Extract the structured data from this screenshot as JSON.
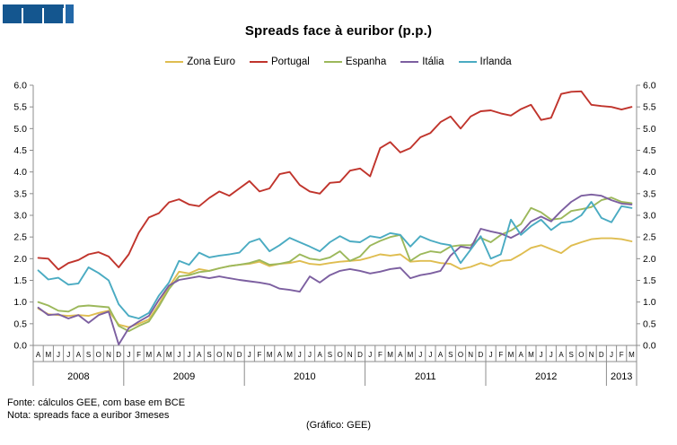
{
  "title": "Spreads face à euribor (p.p.)",
  "logo": {
    "name": "GEE"
  },
  "footer": {
    "fonte": "Fonte: cálculos GEE, com base em BCE",
    "nota": "Nota: spreads face a euribor 3meses",
    "credit": "(Gráfico:  GEE)"
  },
  "chart_data": {
    "type": "line",
    "title": "Spreads face à euribor (p.p.)",
    "ylim": [
      0.0,
      6.0
    ],
    "ytick_step": 0.5,
    "grid": false,
    "legend_position": "top-center",
    "axis_color": "#8C8C8C",
    "x_months": [
      "A",
      "M",
      "J",
      "J",
      "A",
      "S",
      "O",
      "N",
      "D",
      "J",
      "F",
      "M",
      "A",
      "M",
      "J",
      "J",
      "A",
      "S",
      "O",
      "N",
      "D",
      "J",
      "F",
      "M",
      "A",
      "M",
      "J",
      "J",
      "A",
      "S",
      "O",
      "N",
      "D",
      "J",
      "F",
      "M",
      "A",
      "M",
      "J",
      "J",
      "A",
      "S",
      "O",
      "N",
      "D",
      "J",
      "F",
      "M",
      "A",
      "M",
      "J",
      "J",
      "A",
      "S",
      "O",
      "N",
      "D",
      "J",
      "F",
      "M"
    ],
    "year_spans": [
      {
        "year": "2008",
        "months": 9
      },
      {
        "year": "2009",
        "months": 12
      },
      {
        "year": "2010",
        "months": 12
      },
      {
        "year": "2011",
        "months": 12
      },
      {
        "year": "2012",
        "months": 12
      },
      {
        "year": "2013",
        "months": 3
      }
    ],
    "series": [
      {
        "name": "Zona Euro",
        "color": "#DFBD50",
        "values": [
          0.85,
          0.72,
          0.7,
          0.68,
          0.7,
          0.68,
          0.75,
          0.8,
          0.48,
          0.42,
          0.5,
          0.6,
          0.95,
          1.35,
          1.7,
          1.66,
          1.76,
          1.72,
          1.78,
          1.83,
          1.86,
          1.88,
          1.93,
          1.83,
          1.88,
          1.9,
          1.95,
          1.88,
          1.86,
          1.9,
          1.93,
          1.95,
          1.97,
          2.03,
          2.1,
          2.07,
          2.1,
          1.93,
          1.95,
          1.95,
          1.9,
          1.88,
          1.76,
          1.81,
          1.9,
          1.83,
          1.95,
          1.97,
          2.1,
          2.25,
          2.31,
          2.22,
          2.13,
          2.3,
          2.38,
          2.45,
          2.47,
          2.47,
          2.45,
          2.4
        ]
      },
      {
        "name": "Portugal",
        "color": "#C0342C",
        "values": [
          2.02,
          2.0,
          1.75,
          1.9,
          1.97,
          2.1,
          2.15,
          2.05,
          1.8,
          2.1,
          2.6,
          2.95,
          3.05,
          3.3,
          3.37,
          3.25,
          3.21,
          3.4,
          3.55,
          3.45,
          3.62,
          3.79,
          3.55,
          3.62,
          3.95,
          4.0,
          3.7,
          3.55,
          3.5,
          3.75,
          3.77,
          4.03,
          4.08,
          3.9,
          4.55,
          4.69,
          4.45,
          4.55,
          4.8,
          4.9,
          5.15,
          5.28,
          5.0,
          5.28,
          5.4,
          5.42,
          5.35,
          5.3,
          5.45,
          5.55,
          5.2,
          5.25,
          5.8,
          5.85,
          5.86,
          5.55,
          5.52,
          5.5,
          5.44,
          5.5
        ]
      },
      {
        "name": "Espanha",
        "color": "#9CB85B",
        "values": [
          1.0,
          0.92,
          0.8,
          0.78,
          0.9,
          0.92,
          0.9,
          0.88,
          0.45,
          0.33,
          0.45,
          0.55,
          0.9,
          1.3,
          1.59,
          1.62,
          1.69,
          1.72,
          1.78,
          1.83,
          1.86,
          1.9,
          1.97,
          1.86,
          1.88,
          1.93,
          2.1,
          2.0,
          1.97,
          2.03,
          2.17,
          1.95,
          2.05,
          2.3,
          2.41,
          2.5,
          2.55,
          1.95,
          2.1,
          2.17,
          2.14,
          2.28,
          2.31,
          2.31,
          2.48,
          2.38,
          2.55,
          2.65,
          2.8,
          3.17,
          3.07,
          2.9,
          2.93,
          3.1,
          3.14,
          3.19,
          3.35,
          3.41,
          3.31,
          3.28
        ]
      },
      {
        "name": "Itália",
        "color": "#7C5FA0",
        "values": [
          0.87,
          0.7,
          0.72,
          0.62,
          0.7,
          0.52,
          0.7,
          0.78,
          0.02,
          0.4,
          0.55,
          0.68,
          1.05,
          1.38,
          1.51,
          1.55,
          1.59,
          1.55,
          1.59,
          1.55,
          1.51,
          1.48,
          1.45,
          1.41,
          1.31,
          1.28,
          1.24,
          1.59,
          1.45,
          1.62,
          1.72,
          1.76,
          1.72,
          1.66,
          1.7,
          1.76,
          1.79,
          1.55,
          1.62,
          1.66,
          1.72,
          2.07,
          2.28,
          2.24,
          2.69,
          2.63,
          2.58,
          2.48,
          2.6,
          2.86,
          2.97,
          2.86,
          3.1,
          3.31,
          3.45,
          3.48,
          3.45,
          3.35,
          3.27,
          3.25
        ]
      },
      {
        "name": "Irlanda",
        "color": "#4AABC2",
        "values": [
          1.73,
          1.52,
          1.56,
          1.4,
          1.43,
          1.8,
          1.67,
          1.5,
          0.95,
          0.68,
          0.62,
          0.75,
          1.15,
          1.45,
          1.95,
          1.86,
          2.14,
          2.03,
          2.07,
          2.1,
          2.14,
          2.38,
          2.46,
          2.17,
          2.31,
          2.48,
          2.38,
          2.28,
          2.17,
          2.38,
          2.52,
          2.4,
          2.38,
          2.52,
          2.48,
          2.59,
          2.55,
          2.28,
          2.52,
          2.42,
          2.35,
          2.31,
          1.9,
          2.21,
          2.52,
          2.0,
          2.1,
          2.9,
          2.55,
          2.75,
          2.9,
          2.66,
          2.83,
          2.86,
          3.0,
          3.31,
          2.94,
          2.84,
          3.21,
          3.17
        ]
      }
    ]
  }
}
